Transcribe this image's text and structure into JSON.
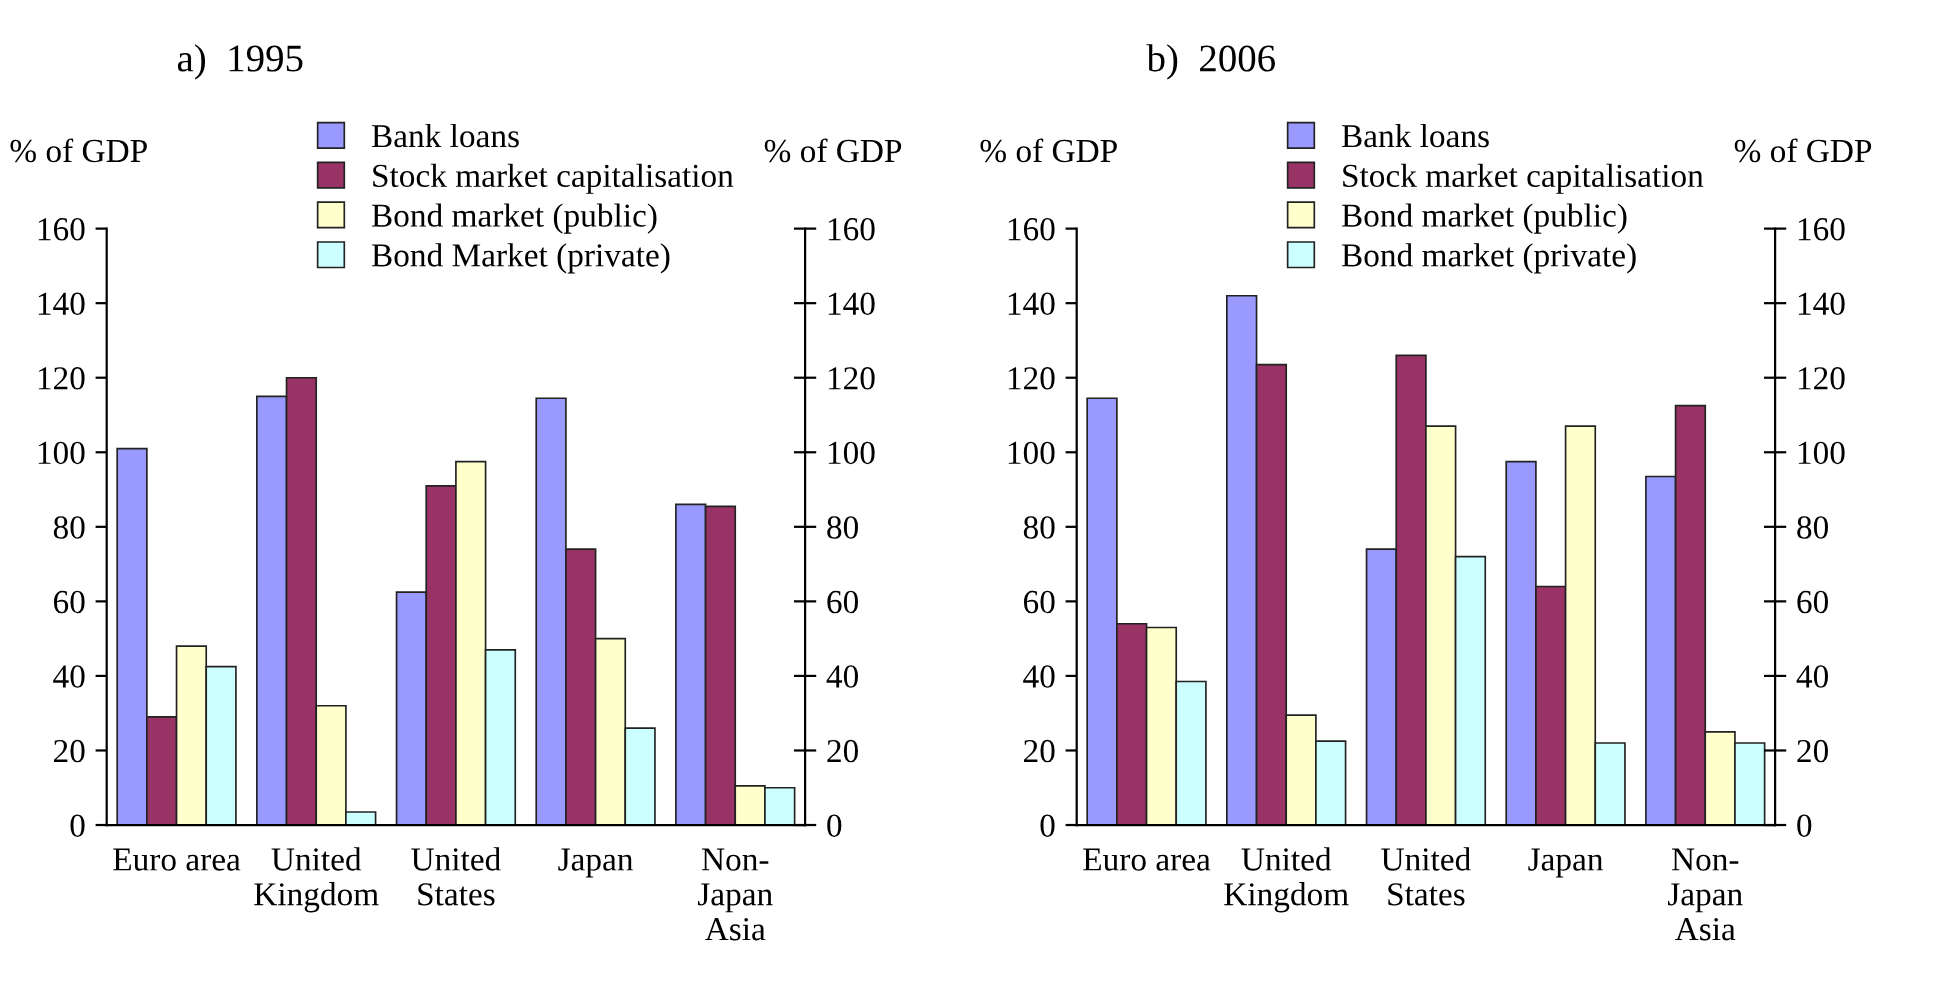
{
  "chart_data": [
    {
      "type": "bar",
      "title": "a)  1995",
      "ylabel": "% of GDP",
      "y2label": "% of GDP",
      "categories": [
        "Euro area",
        "United\nKingdom",
        "United\nStates",
        "Japan",
        "Non-\nJapan\nAsia"
      ],
      "series": [
        {
          "name": "Bank loans",
          "color": "#9999ff",
          "values": [
            101,
            115,
            62.5,
            114.5,
            86
          ]
        },
        {
          "name": "Stock market capitalisation",
          "color": "#993366",
          "values": [
            29,
            120,
            91,
            74,
            85.5
          ]
        },
        {
          "name": "Bond market (public)",
          "color": "#ffffcc",
          "values": [
            48,
            32,
            97.5,
            50,
            10.5
          ]
        },
        {
          "name": "Bond Market (private)",
          "color": "#ccffff",
          "values": [
            42.5,
            3.5,
            47,
            26,
            10
          ]
        }
      ],
      "ylim": [
        0,
        160
      ],
      "yticks": [
        0,
        20,
        40,
        60,
        80,
        100,
        120,
        140,
        160
      ],
      "y2lim": [
        0,
        160
      ],
      "y2ticks": [
        0,
        20,
        40,
        60,
        80,
        100,
        120,
        140,
        160
      ],
      "grid": false,
      "legend": "top"
    },
    {
      "type": "bar",
      "title": "b)  2006",
      "ylabel": "% of GDP",
      "y2label": "% of GDP",
      "categories": [
        "Euro area",
        "United\nKingdom",
        "United\nStates",
        "Japan",
        "Non-\nJapan\nAsia"
      ],
      "series": [
        {
          "name": "Bank loans",
          "color": "#9999ff",
          "values": [
            114.5,
            142,
            74,
            97.5,
            93.5
          ]
        },
        {
          "name": "Stock market capitalisation",
          "color": "#993366",
          "values": [
            54,
            123.5,
            126,
            64,
            112.5
          ]
        },
        {
          "name": "Bond market (public)",
          "color": "#ffffcc",
          "values": [
            53,
            29.5,
            107,
            107,
            25
          ]
        },
        {
          "name": "Bond market (private)",
          "color": "#ccffff",
          "values": [
            38.5,
            22.5,
            72,
            22,
            22
          ]
        }
      ],
      "ylim": [
        0,
        160
      ],
      "yticks": [
        0,
        20,
        40,
        60,
        80,
        100,
        120,
        140,
        160
      ],
      "y2lim": [
        0,
        160
      ],
      "y2ticks": [
        0,
        20,
        40,
        60,
        80,
        100,
        120,
        140,
        160
      ],
      "grid": false,
      "legend": "top"
    }
  ]
}
